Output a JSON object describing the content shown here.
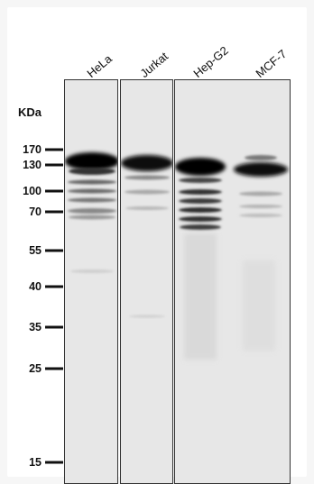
{
  "unit_label": "KDa",
  "lanes": [
    "HeLa",
    "Jurkat",
    "Hep-G2",
    "MCF-7"
  ],
  "markers": [
    "170",
    "130",
    "100",
    "70",
    "55",
    "40",
    "35",
    "25",
    "15"
  ]
}
